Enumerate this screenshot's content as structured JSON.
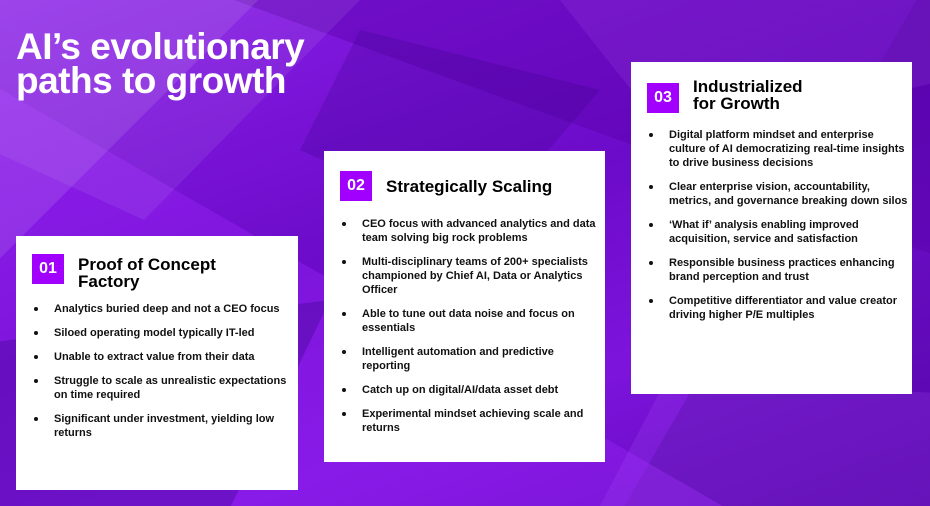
{
  "title": {
    "line1": "AI’s evolutionary",
    "line2": "paths to growth"
  },
  "colors": {
    "accent": "#a100ff",
    "background": "#7a12d6",
    "card": "#ffffff"
  },
  "cards": [
    {
      "number": "01",
      "title_line1": "Proof of Concept",
      "title_line2": "Factory",
      "items": [
        "Analytics buried deep and not a CEO focus",
        "Siloed operating model typically IT-led",
        "Unable to extract value from their data",
        "Struggle to scale as unrealistic expectations on time required",
        "Significant under investment, yielding low returns"
      ]
    },
    {
      "number": "02",
      "title_line1": "Strategically Scaling",
      "title_line2": "",
      "items": [
        "CEO focus with advanced analytics and data team solving big rock problems",
        "Multi-disciplinary teams of 200+ specialists championed by Chief AI, Data or Analytics Officer",
        "Able to tune out data noise and focus on essentials",
        "Intelligent automation and predictive reporting",
        "Catch up on digital/AI/data asset debt",
        "Experimental mindset achieving scale and returns"
      ]
    },
    {
      "number": "03",
      "title_line1": "Industrialized",
      "title_line2": "for Growth",
      "items": [
        "Digital platform mindset and enterprise culture of AI democratizing real-time insights to drive business decisions",
        "Clear enterprise vision, accountability, metrics, and governance breaking down silos",
        "‘What if’ analysis enabling improved acquisition, service and satisfaction",
        "Responsible business practices enhancing brand perception and trust",
        "Competitive differentiator and value creator driving higher P/E multiples"
      ]
    }
  ]
}
